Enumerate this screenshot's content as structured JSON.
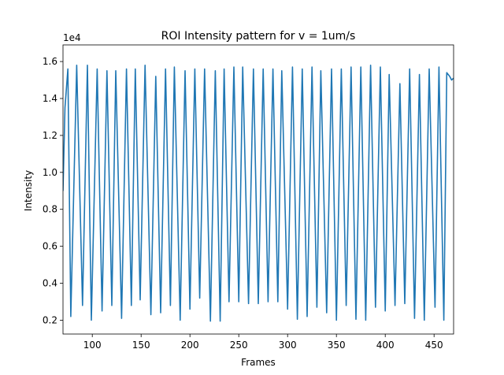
{
  "chart_data": {
    "type": "line",
    "title": "ROI Intensity pattern for v = 1um/s",
    "xlabel": "Frames",
    "ylabel": "Intensity",
    "y_offset_label": "1e4",
    "xlim": [
      70,
      470
    ],
    "ylim": [
      1250,
      16900
    ],
    "xticks": [
      100,
      150,
      200,
      250,
      300,
      350,
      400,
      450
    ],
    "yticks": [
      2000,
      4000,
      6000,
      8000,
      10000,
      12000,
      14000,
      16000
    ],
    "ytick_labels": [
      "0.2",
      "0.4",
      "0.6",
      "0.8",
      "1.0",
      "1.2",
      "1.4",
      "1.6"
    ],
    "grid": false,
    "legend": "none",
    "series": [
      {
        "color": "#1f77b4",
        "x": [
          70,
          72,
          75,
          78,
          84,
          90,
          95,
          99,
          105,
          110,
          115,
          120,
          124,
          130,
          135,
          140,
          144,
          149,
          154,
          160,
          165,
          170,
          175,
          180,
          184,
          190,
          195,
          200,
          205,
          210,
          215,
          221,
          226,
          231,
          235,
          240,
          245,
          250,
          254,
          260,
          265,
          270,
          275,
          280,
          285,
          290,
          294,
          300,
          305,
          310,
          315,
          320,
          325,
          330,
          334,
          340,
          345,
          350,
          355,
          360,
          365,
          370,
          375,
          380,
          385,
          390,
          395,
          400,
          404,
          410,
          415,
          420,
          425,
          430,
          435,
          440,
          445,
          451,
          455,
          460,
          463,
          466,
          468,
          470
        ],
        "y": [
          9000,
          13500,
          15600,
          2200,
          15800,
          2800,
          15800,
          2000,
          15600,
          2500,
          15500,
          2800,
          15500,
          2100,
          15600,
          2800,
          15600,
          3100,
          15800,
          2300,
          15200,
          2400,
          15600,
          2800,
          15700,
          2000,
          15500,
          2600,
          15600,
          3200,
          15600,
          1950,
          15500,
          1950,
          15600,
          3000,
          15700,
          3000,
          15700,
          2900,
          15600,
          2900,
          15600,
          3000,
          15600,
          3000,
          15500,
          2600,
          15700,
          2050,
          15600,
          2200,
          15700,
          2700,
          15500,
          2400,
          15600,
          2000,
          15600,
          2800,
          15700,
          2050,
          15700,
          2000,
          15800,
          2700,
          15700,
          2500,
          15300,
          2800,
          14800,
          2900,
          15600,
          2100,
          15300,
          2000,
          15600,
          2700,
          15700,
          2000,
          15400,
          15200,
          15000,
          15100
        ]
      }
    ]
  }
}
